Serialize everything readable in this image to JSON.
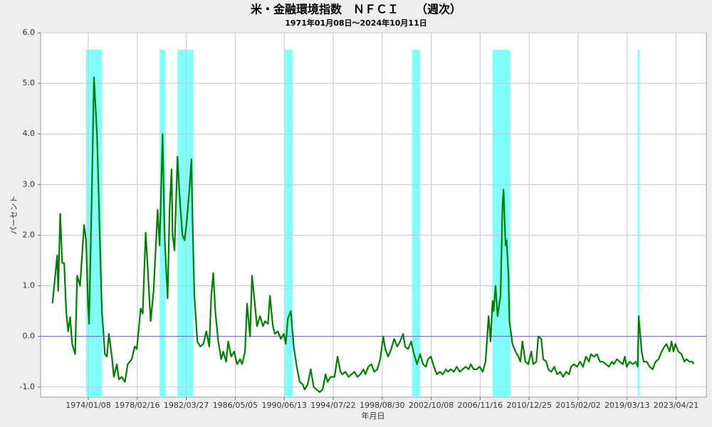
{
  "chart_data": {
    "type": "line",
    "title": "米・金融環境指数　ＮＦＣＩ　　（週次）",
    "subtitle": "1971年01月08日～2024年10月11日",
    "x_label": "年月日",
    "y_label": "パーセント",
    "color": "#008000",
    "grid": true,
    "shade_color": "#80ffff",
    "zero_line_color": "#6666cc",
    "xlim": [
      "1970-01-08",
      "2025-11-01"
    ],
    "ylim": [
      -1.2,
      6.0
    ],
    "yticks": [
      {
        "value": -1,
        "label": "-1.0"
      },
      {
        "value": 0,
        "label": "0.0"
      },
      {
        "value": 1,
        "label": "1.0"
      },
      {
        "value": 2,
        "label": "2.0"
      },
      {
        "value": 3,
        "label": "3.0"
      },
      {
        "value": 4,
        "label": "4.0"
      },
      {
        "value": 5,
        "label": "5.0"
      },
      {
        "value": 6,
        "label": "6.0"
      }
    ],
    "xticks": [
      {
        "value": "1974-01-08",
        "label": "1974/01/08"
      },
      {
        "value": "1978-02-16",
        "label": "1978/02/16"
      },
      {
        "value": "1982-03-27",
        "label": "1982/03/27"
      },
      {
        "value": "1986-05-05",
        "label": "1986/05/05"
      },
      {
        "value": "1990-06-13",
        "label": "1990/06/13"
      },
      {
        "value": "1994-07-22",
        "label": "1994/07/22"
      },
      {
        "value": "1998-08-30",
        "label": "1998/08/30"
      },
      {
        "value": "2002-10-08",
        "label": "2002/10/08"
      },
      {
        "value": "2006-11-16",
        "label": "2006/11/16"
      },
      {
        "value": "2010-12-25",
        "label": "2010/12/25"
      },
      {
        "value": "2015-02-02",
        "label": "2015/02/02"
      },
      {
        "value": "2019-03-13",
        "label": "2019/03/13"
      },
      {
        "value": "2023-04-21",
        "label": "2023/04/21"
      }
    ],
    "shaded_periods": [
      [
        "1973-11-01",
        "1975-03-01"
      ],
      [
        "1980-01-01",
        "1980-07-01"
      ],
      [
        "1981-07-01",
        "1982-11-01"
      ],
      [
        "1990-07-01",
        "1991-03-01"
      ],
      [
        "2001-03-01",
        "2001-11-01"
      ],
      [
        "2007-12-01",
        "2009-06-01"
      ],
      [
        "2020-02-01",
        "2020-04-01"
      ]
    ],
    "x": [
      "1971-01-08",
      "1971-03-01",
      "1971-06-01",
      "1971-07-01",
      "1971-09-01",
      "1971-11-01",
      "1972-01-01",
      "1972-03-01",
      "1972-05-01",
      "1972-07-01",
      "1972-09-01",
      "1972-12-01",
      "1973-02-01",
      "1973-05-01",
      "1973-09-01",
      "1973-11-01",
      "1974-01-01",
      "1974-02-01",
      "1974-05-01",
      "1974-07-01",
      "1974-10-01",
      "1974-12-01",
      "1975-01-01",
      "1975-03-01",
      "1975-06-01",
      "1975-08-01",
      "1975-10-01",
      "1976-01-01",
      "1976-03-01",
      "1976-06-01",
      "1976-08-01",
      "1976-11-01",
      "1977-02-01",
      "1977-05-01",
      "1977-09-01",
      "1977-12-01",
      "1978-02-01",
      "1978-06-01",
      "1978-08-01",
      "1978-11-01",
      "1979-02-01",
      "1979-04-01",
      "1979-07-01",
      "1979-09-01",
      "1979-11-01",
      "1980-01-01",
      "1980-04-01",
      "1980-06-01",
      "1980-09-01",
      "1980-11-01",
      "1981-01-01",
      "1981-02-01",
      "1981-04-01",
      "1981-07-01",
      "1981-09-01",
      "1981-12-01",
      "1982-02-01",
      "1982-04-01",
      "1982-07-01",
      "1982-09-01",
      "1982-10-01",
      "1982-12-01",
      "1983-03-01",
      "1983-06-01",
      "1983-09-01",
      "1983-12-01",
      "1984-03-01",
      "1984-05-01",
      "1984-07-01",
      "1984-09-01",
      "1984-12-01",
      "1985-03-01",
      "1985-05-01",
      "1985-08-01",
      "1985-10-01",
      "1986-01-01",
      "1986-04-01",
      "1986-07-01",
      "1986-10-01",
      "1986-12-01",
      "1987-03-01",
      "1987-05-01",
      "1987-08-01",
      "1987-10-01",
      "1988-01-01",
      "1988-03-01",
      "1988-06-01",
      "1988-09-01",
      "1988-11-01",
      "1989-02-01",
      "1989-04-01",
      "1989-07-01",
      "1989-09-01",
      "1989-12-01",
      "1990-03-01",
      "1990-06-01",
      "1990-08-01",
      "1990-10-01",
      "1991-01-01",
      "1991-04-01",
      "1991-07-01",
      "1991-10-01",
      "1992-01-01",
      "1992-03-01",
      "1992-06-01",
      "1992-09-01",
      "1992-12-01",
      "1993-03-01",
      "1993-06-01",
      "1993-09-01",
      "1993-12-01",
      "1994-02-01",
      "1994-05-01",
      "1994-09-01",
      "1994-12-01",
      "1995-03-01",
      "1995-05-01",
      "1995-08-01",
      "1995-11-01",
      "1996-02-01",
      "1996-05-01",
      "1996-08-01",
      "1996-11-01",
      "1997-02-01",
      "1997-04-01",
      "1997-07-01",
      "1997-10-01",
      "1998-01-01",
      "1998-04-01",
      "1998-07-01",
      "1998-10-01",
      "1998-12-01",
      "1999-03-01",
      "1999-06-01",
      "1999-09-01",
      "1999-12-01",
      "2000-03-01",
      "2000-06-01",
      "2000-08-01",
      "2000-11-01",
      "2001-02-01",
      "2001-05-01",
      "2001-08-01",
      "2001-11-01",
      "2002-02-01",
      "2002-05-01",
      "2002-07-01",
      "2002-10-01",
      "2003-01-01",
      "2003-04-01",
      "2003-07-01",
      "2003-10-01",
      "2004-01-01",
      "2004-03-01",
      "2004-06-01",
      "2004-09-01",
      "2004-12-01",
      "2005-03-01",
      "2005-06-01",
      "2005-09-01",
      "2005-12-01",
      "2006-02-01",
      "2006-05-01",
      "2006-08-01",
      "2006-11-01",
      "2007-02-01",
      "2007-05-01",
      "2007-08-01",
      "2007-10-01",
      "2007-12-01",
      "2008-01-01",
      "2008-03-01",
      "2008-05-01",
      "2008-08-01",
      "2008-10-01",
      "2008-11-01",
      "2009-01-01",
      "2009-02-01",
      "2009-04-01",
      "2009-05-01",
      "2009-08-01",
      "2009-11-01",
      "2010-02-01",
      "2010-04-01",
      "2010-06-01",
      "2010-09-01",
      "2010-12-01",
      "2011-03-01",
      "2011-05-01",
      "2011-08-01",
      "2011-10-01",
      "2012-01-01",
      "2012-03-01",
      "2012-06-01",
      "2012-08-01",
      "2012-11-01",
      "2013-02-01",
      "2013-05-01",
      "2013-08-01",
      "2013-11-01",
      "2014-02-01",
      "2014-05-01",
      "2014-07-01",
      "2014-10-01",
      "2015-01-01",
      "2015-04-01",
      "2015-07-01",
      "2015-10-01",
      "2016-01-01",
      "2016-03-01",
      "2016-06-01",
      "2016-09-01",
      "2016-12-01",
      "2017-03-01",
      "2017-06-01",
      "2017-09-01",
      "2017-12-01",
      "2018-02-01",
      "2018-05-01",
      "2018-08-01",
      "2018-11-01",
      "2019-01-01",
      "2019-03-01",
      "2019-06-01",
      "2019-09-01",
      "2019-12-01",
      "2020-02-01",
      "2020-03-01",
      "2020-06-01",
      "2020-08-01",
      "2020-11-01",
      "2021-02-01",
      "2021-05-01",
      "2021-08-01",
      "2021-11-01",
      "2022-02-01",
      "2022-05-01",
      "2022-07-01",
      "2022-10-01",
      "2022-12-01",
      "2023-02-01",
      "2023-04-01",
      "2023-07-01",
      "2023-10-01",
      "2024-01-01",
      "2024-03-01",
      "2024-06-01",
      "2024-09-01",
      "2024-10-11"
    ],
    "values": [
      0.65,
      1.0,
      1.6,
      0.9,
      2.42,
      1.45,
      1.45,
      0.5,
      0.1,
      0.38,
      -0.15,
      -0.35,
      1.2,
      1.0,
      2.2,
      1.9,
      0.6,
      0.25,
      3.0,
      5.12,
      4.0,
      2.6,
      1.8,
      0.5,
      -0.35,
      -0.4,
      0.05,
      -0.4,
      -0.8,
      -0.55,
      -0.85,
      -0.8,
      -0.9,
      -0.55,
      -0.45,
      -0.2,
      -0.25,
      0.55,
      0.45,
      2.05,
      1.0,
      0.3,
      0.9,
      1.7,
      2.5,
      1.8,
      4.0,
      2.0,
      0.75,
      2.5,
      3.3,
      2.0,
      1.7,
      3.55,
      2.8,
      2.0,
      1.9,
      2.2,
      2.9,
      3.5,
      2.4,
      0.8,
      -0.1,
      -0.2,
      -0.15,
      0.1,
      -0.2,
      0.8,
      1.25,
      0.5,
      -0.1,
      -0.45,
      -0.3,
      -0.5,
      -0.1,
      -0.4,
      -0.3,
      -0.55,
      -0.45,
      -0.55,
      -0.3,
      0.65,
      0.0,
      1.2,
      0.6,
      0.2,
      0.4,
      0.2,
      0.3,
      0.25,
      0.8,
      0.2,
      0.05,
      0.1,
      -0.05,
      0.05,
      -0.15,
      0.35,
      0.5,
      -0.2,
      -0.6,
      -0.9,
      -0.95,
      -1.05,
      -0.95,
      -0.65,
      -1.0,
      -1.05,
      -1.1,
      -1.05,
      -0.75,
      -0.9,
      -0.8,
      -0.8,
      -0.4,
      -0.7,
      -0.75,
      -0.7,
      -0.8,
      -0.75,
      -0.7,
      -0.8,
      -0.75,
      -0.65,
      -0.75,
      -0.6,
      -0.55,
      -0.7,
      -0.65,
      -0.45,
      0.0,
      -0.25,
      -0.4,
      -0.25,
      -0.05,
      -0.2,
      -0.1,
      0.05,
      -0.2,
      -0.25,
      -0.1,
      -0.35,
      -0.55,
      -0.35,
      -0.55,
      -0.6,
      -0.45,
      -0.4,
      -0.6,
      -0.75,
      -0.7,
      -0.75,
      -0.65,
      -0.7,
      -0.65,
      -0.7,
      -0.6,
      -0.7,
      -0.65,
      -0.6,
      -0.65,
      -0.55,
      -0.65,
      -0.65,
      -0.6,
      -0.7,
      -0.5,
      0.4,
      -0.1,
      0.7,
      0.5,
      1.0,
      0.4,
      0.8,
      2.6,
      2.9,
      1.8,
      1.9,
      1.2,
      0.3,
      -0.15,
      -0.3,
      -0.4,
      -0.5,
      -0.1,
      -0.5,
      -0.55,
      -0.3,
      -0.55,
      -0.5,
      0.0,
      -0.05,
      -0.45,
      -0.5,
      -0.65,
      -0.7,
      -0.6,
      -0.75,
      -0.7,
      -0.8,
      -0.7,
      -0.75,
      -0.6,
      -0.55,
      -0.6,
      -0.5,
      -0.6,
      -0.4,
      -0.5,
      -0.35,
      -0.4,
      -0.35,
      -0.5,
      -0.5,
      -0.55,
      -0.6,
      -0.5,
      -0.55,
      -0.45,
      -0.5,
      -0.55,
      -0.4,
      -0.6,
      -0.5,
      -0.55,
      -0.5,
      -0.6,
      0.4,
      -0.3,
      -0.5,
      -0.5,
      -0.6,
      -0.65,
      -0.5,
      -0.45,
      -0.3,
      -0.2,
      -0.15,
      -0.3,
      -0.1,
      -0.3,
      -0.15,
      -0.3,
      -0.35,
      -0.5,
      -0.45,
      -0.5,
      -0.5,
      -0.55
    ]
  }
}
